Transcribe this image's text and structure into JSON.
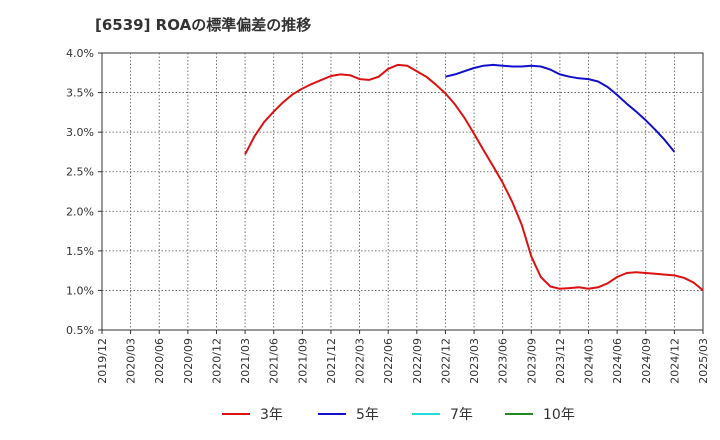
{
  "chart_data": {
    "type": "line",
    "title": "[6539]  ROAの標準偏差の推移",
    "xlabel": "",
    "ylabel": "",
    "ylim": [
      0.5,
      4.0
    ],
    "y_ticks": [
      0.5,
      1.0,
      1.5,
      2.0,
      2.5,
      3.0,
      3.5,
      4.0
    ],
    "y_tick_labels": [
      "0.5%",
      "1.0%",
      "1.5%",
      "2.0%",
      "2.5%",
      "3.0%",
      "3.5%",
      "4.0%"
    ],
    "x_tick_labels": [
      "2019/12",
      "2020/03",
      "2020/06",
      "2020/09",
      "2020/12",
      "2021/03",
      "2021/06",
      "2021/09",
      "2021/12",
      "2022/03",
      "2022/06",
      "2022/09",
      "2022/12",
      "2023/03",
      "2023/06",
      "2023/09",
      "2023/12",
      "2024/03",
      "2024/06",
      "2024/09",
      "2024/12",
      "2025/03"
    ],
    "grid": true,
    "legend_position": "bottom",
    "series": [
      {
        "name": "3年",
        "color": "#dd1111",
        "values": [
          null,
          null,
          null,
          null,
          null,
          null,
          null,
          null,
          null,
          null,
          null,
          null,
          null,
          null,
          null,
          2.72,
          2.95,
          3.13,
          3.26,
          3.38,
          3.48,
          3.55,
          3.61,
          3.66,
          3.71,
          3.73,
          3.72,
          3.67,
          3.66,
          3.7,
          3.8,
          3.85,
          3.84,
          3.77,
          3.7,
          3.6,
          3.49,
          3.35,
          3.18,
          2.98,
          2.77,
          2.57,
          2.36,
          2.12,
          1.83,
          1.43,
          1.17,
          1.05,
          1.02,
          1.03,
          1.04,
          1.02,
          1.04,
          1.09,
          1.17,
          1.22,
          1.23,
          1.22,
          1.21,
          1.2,
          1.19,
          1.16,
          1.1,
          1.0
        ]
      },
      {
        "name": "5年",
        "color": "#1111cc",
        "values": [
          null,
          null,
          null,
          null,
          null,
          null,
          null,
          null,
          null,
          null,
          null,
          null,
          null,
          null,
          null,
          null,
          null,
          null,
          null,
          null,
          null,
          null,
          null,
          null,
          null,
          null,
          null,
          null,
          null,
          null,
          null,
          null,
          null,
          null,
          null,
          null,
          null,
          null,
          null,
          null,
          null,
          null,
          null,
          null,
          null,
          null,
          null,
          null,
          null,
          null,
          null,
          null,
          null,
          null,
          null,
          null,
          null,
          null,
          null,
          null,
          null,
          null,
          null,
          null
        ],
        "values_from_2022_12": [
          3.7,
          3.73,
          3.77,
          3.81,
          3.84,
          3.85,
          3.84,
          3.83,
          3.83,
          3.84,
          3.83,
          3.79,
          3.73,
          3.7,
          3.68,
          3.67,
          3.64,
          3.57,
          3.47,
          3.36,
          3.26,
          3.15,
          3.03,
          2.9,
          2.75
        ]
      },
      {
        "name": "7年",
        "color": "#22dddd",
        "values": []
      },
      {
        "name": "10年",
        "color": "#228822",
        "values": []
      }
    ]
  }
}
